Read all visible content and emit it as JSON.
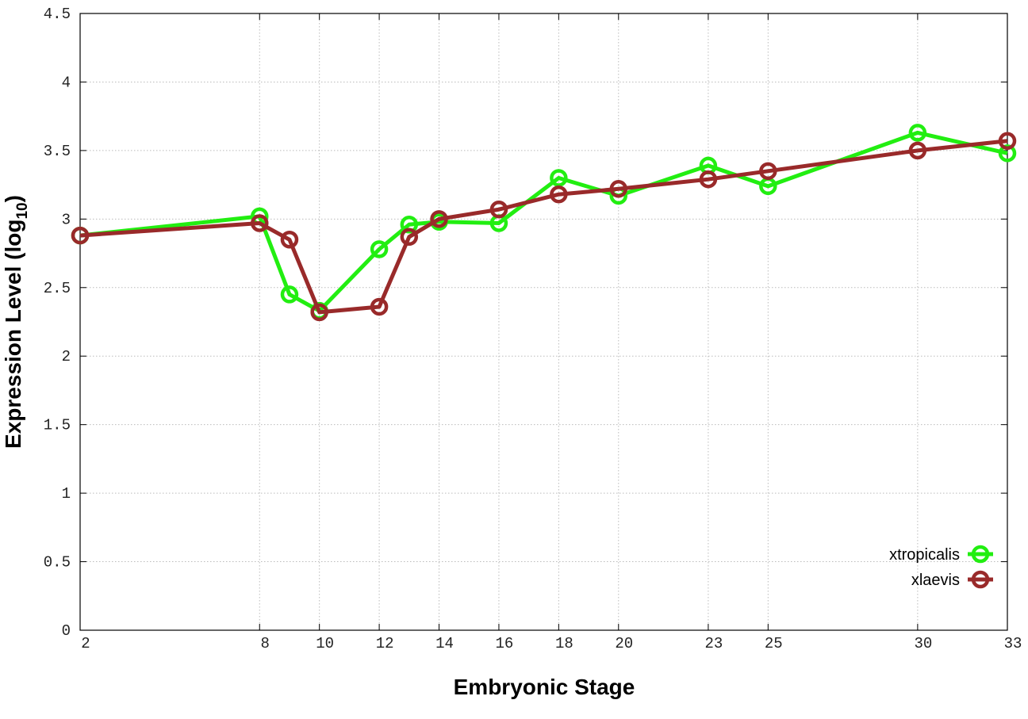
{
  "chart_data": {
    "type": "line",
    "x_label": "Embryonic Stage",
    "y_label": {
      "text": "Expression Level (log",
      "sub": "10",
      "end": ")"
    },
    "x": [
      2,
      8,
      9,
      10,
      12,
      13,
      14,
      16,
      18,
      20,
      23,
      25,
      30,
      33
    ],
    "series": [
      {
        "name": "xtropicalis",
        "color": "#22ee11",
        "values": [
          2.88,
          3.02,
          2.45,
          2.33,
          2.78,
          2.96,
          2.98,
          2.97,
          3.3,
          3.17,
          3.39,
          3.24,
          3.63,
          3.48
        ]
      },
      {
        "name": "xlaevis",
        "color": "#992a2a",
        "values": [
          2.88,
          2.97,
          2.85,
          2.32,
          2.36,
          2.87,
          3.0,
          3.07,
          3.18,
          3.22,
          3.29,
          3.35,
          3.5,
          3.57
        ]
      }
    ],
    "xlim": [
      2,
      33
    ],
    "xticks": [
      2,
      8,
      10,
      12,
      14,
      16,
      18,
      20,
      23,
      25,
      30,
      33
    ],
    "ylim": [
      0,
      4.5
    ],
    "yticks": [
      0,
      0.5,
      1,
      1.5,
      2,
      2.5,
      3,
      3.5,
      4,
      4.5
    ],
    "grid": true,
    "legend": "lower-right"
  }
}
